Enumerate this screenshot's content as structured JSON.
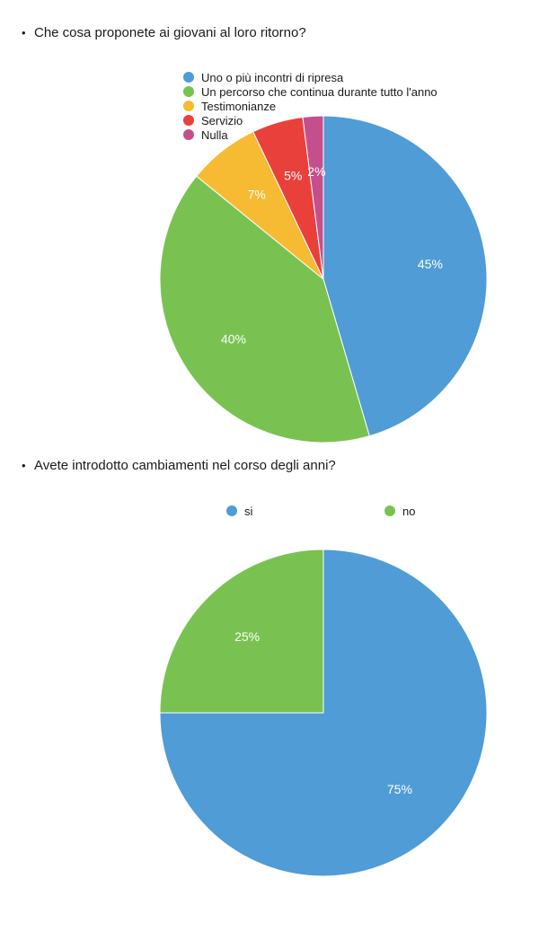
{
  "questions": [
    {
      "bullet": "•",
      "text": "Che cosa proponete ai giovani al loro ritorno?"
    },
    {
      "bullet": "•",
      "text": "Avete introdotto cambiamenti nel corso degli anni?"
    }
  ],
  "chart_data": [
    {
      "type": "pie",
      "title": "Che cosa proponete ai giovani al loro ritorno?",
      "legend_position": "top-left",
      "slices": [
        {
          "label": "Uno o più incontri di ripresa",
          "value": 45,
          "display": "45%",
          "color": "#4f9cd6"
        },
        {
          "label": "Un percorso che continua durante tutto l'anno",
          "value": 40,
          "display": "40%",
          "color": "#79c251"
        },
        {
          "label": "Testimonianze",
          "value": 7,
          "display": "7%",
          "color": "#f6bb33"
        },
        {
          "label": "Servizio",
          "value": 5,
          "display": "5%",
          "color": "#e9403c"
        },
        {
          "label": "Nulla",
          "value": 2,
          "display": "2%",
          "color": "#c54f8c"
        }
      ]
    },
    {
      "type": "pie",
      "title": "Avete introdotto cambiamenti nel corso degli anni?",
      "legend_position": "top",
      "slices": [
        {
          "label": "si",
          "value": 75,
          "display": "75%",
          "color": "#4f9cd6"
        },
        {
          "label": "no",
          "value": 25,
          "display": "25%",
          "color": "#79c251"
        }
      ]
    }
  ]
}
